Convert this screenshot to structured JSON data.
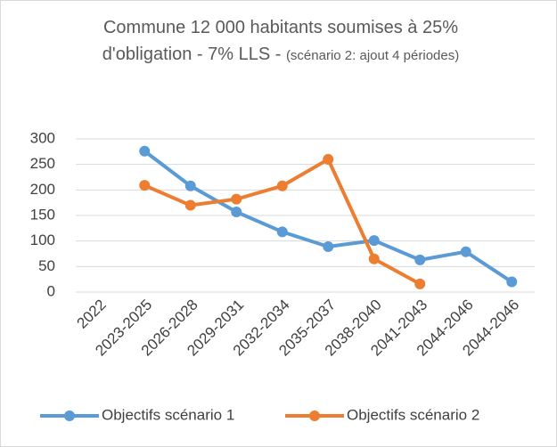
{
  "chart_data": {
    "type": "line",
    "title": "Commune 12 000 habitants  soumises à 25% d'obligation - 7%  LLS -",
    "subtitle": "(scénario 2: ajout 4 périodes)",
    "categories": [
      "2022",
      "2023-2025",
      "2026-2028",
      "2029-2031",
      "2032-2034",
      "2035-2037",
      "2038-2040",
      "2041-2043",
      "2044-2046",
      "2044-2046"
    ],
    "series": [
      {
        "name": "Objectifs scénario 1",
        "color": "#5b9bd5",
        "values": [
          null,
          276,
          208,
          157,
          118,
          89,
          101,
          63,
          79,
          20
        ]
      },
      {
        "name": "Objectifs scénario  2",
        "color": "#ed7d31",
        "values": [
          null,
          209,
          170,
          182,
          208,
          260,
          65,
          16,
          null,
          null
        ]
      }
    ],
    "ylim": [
      0,
      300
    ],
    "yticks": [
      0,
      50,
      100,
      150,
      200,
      250,
      300
    ],
    "grid": true,
    "legend": "bottom"
  }
}
